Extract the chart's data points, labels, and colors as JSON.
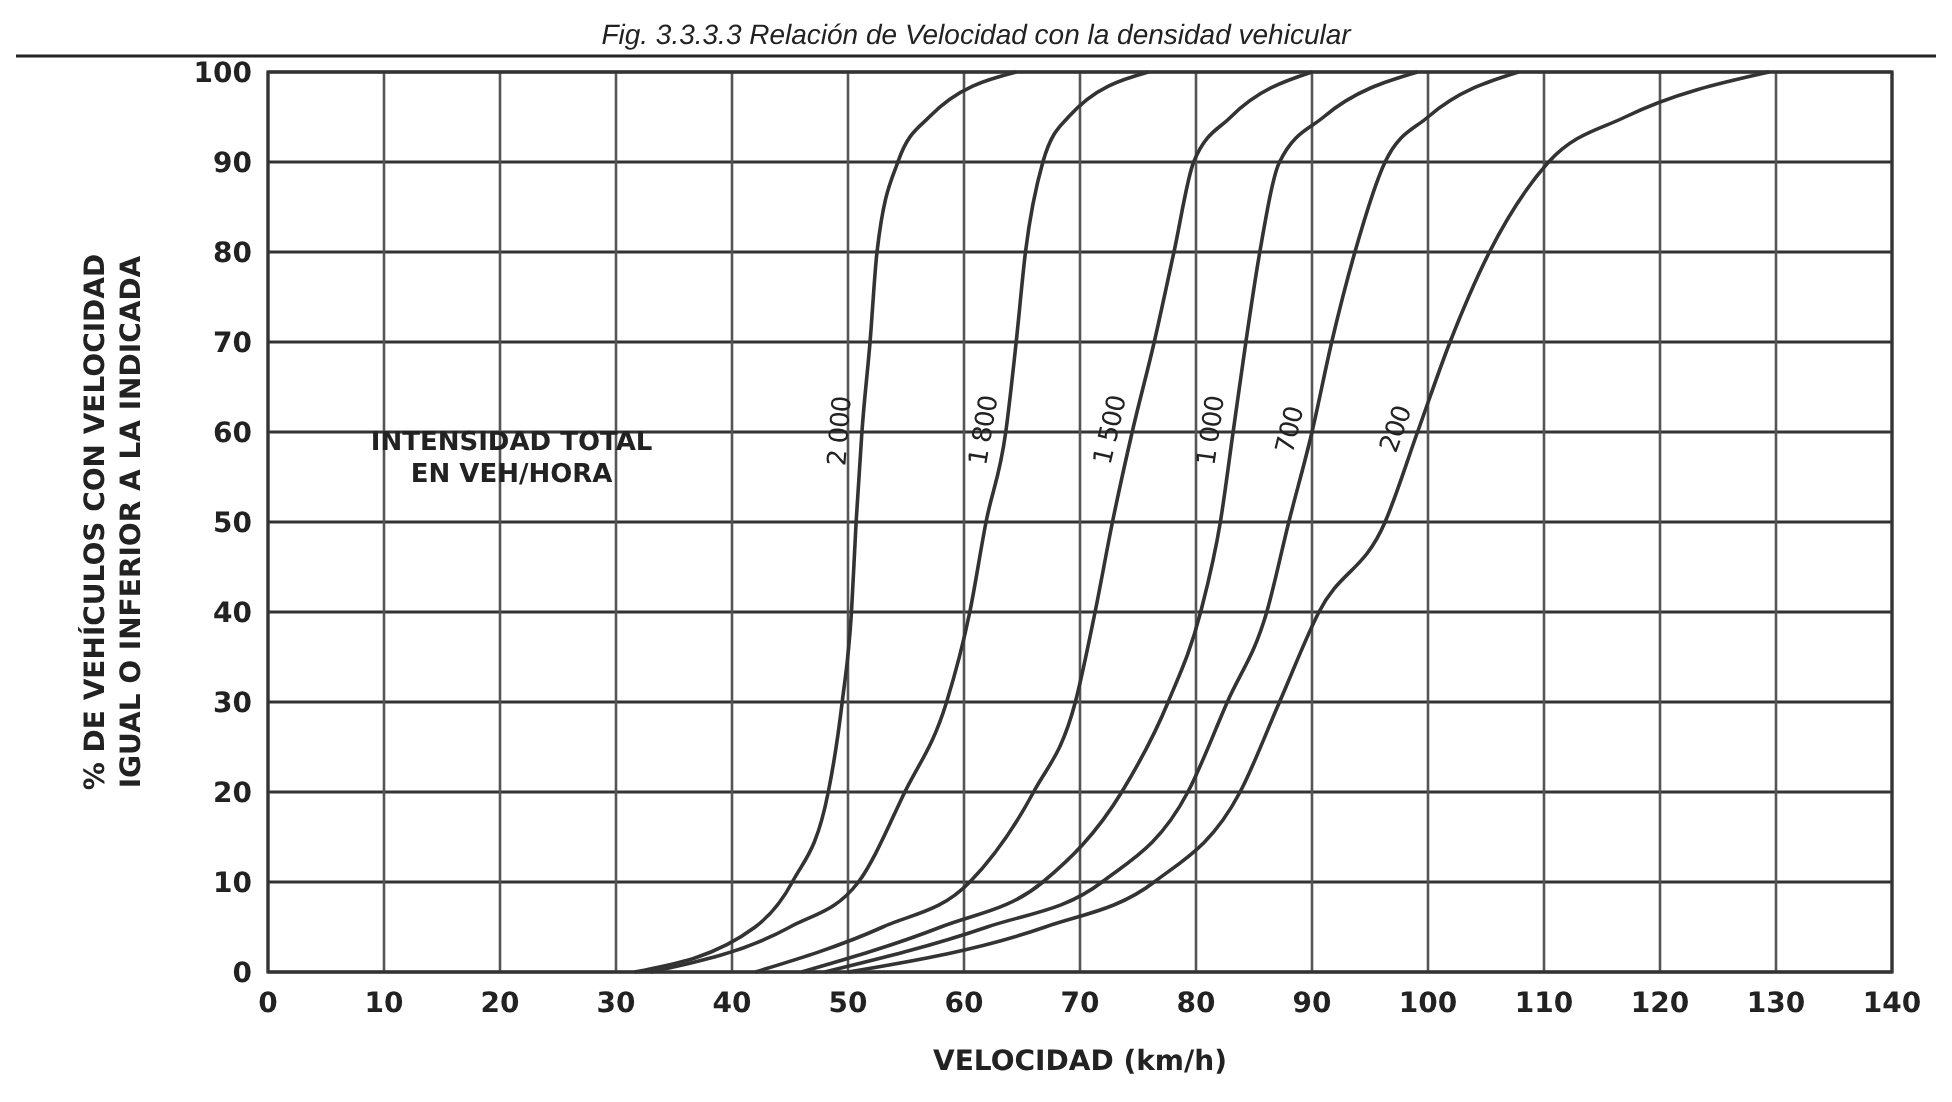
{
  "chart_data": {
    "type": "line",
    "title": "Fig. 3.3.3.3 Relación de Velocidad con la densidad vehicular",
    "xlabel": "VELOCIDAD (km/h)",
    "ylabel": "% DE VEHÍCULOS CON VELOCIDAD IGUAL O INFERIOR A LA INDICADA",
    "legend_title": "INTENSIDAD TOTAL EN VEH/HORA",
    "xlim": [
      0,
      140
    ],
    "ylim": [
      0,
      100
    ],
    "xticks": [
      0,
      10,
      20,
      30,
      40,
      50,
      60,
      70,
      80,
      90,
      100,
      110,
      120,
      130,
      140
    ],
    "yticks": [
      0,
      10,
      20,
      30,
      40,
      50,
      60,
      70,
      80,
      90,
      100
    ],
    "grid": true,
    "marker": "none",
    "line_style": "solid",
    "series": [
      {
        "name": "2 000",
        "color": "#333333",
        "x": [
          31.6,
          42,
          45.2,
          48.3,
          49.5,
          50.3,
          50.7,
          51.2,
          51.9,
          52.5,
          54.3,
          57,
          64.5
        ],
        "values": [
          0,
          5,
          10,
          20,
          30,
          40,
          50,
          60,
          70,
          80,
          90,
          95,
          100
        ]
      },
      {
        "name": "1 800",
        "color": "#333333",
        "x": [
          33,
          45,
          50.9,
          54.9,
          58.5,
          60.5,
          61.9,
          63.6,
          64.5,
          65.3,
          66.8,
          69,
          75.9
        ],
        "values": [
          0,
          5,
          10,
          20,
          30,
          40,
          50,
          60,
          70,
          80,
          90,
          95,
          100
        ]
      },
      {
        "name": "1 500",
        "color": "#333333",
        "x": [
          42,
          53,
          60.5,
          66,
          69.6,
          71.3,
          72.8,
          74.5,
          76.4,
          78.1,
          79.8,
          83,
          90
        ],
        "values": [
          0,
          5,
          10,
          20,
          30,
          40,
          50,
          60,
          70,
          80,
          90,
          95,
          100
        ]
      },
      {
        "name": "1 000",
        "color": "#333333",
        "x": [
          46,
          58,
          66.8,
          73.6,
          77.6,
          80.4,
          82.1,
          83.2,
          84.3,
          85.5,
          87.2,
          91,
          99.1
        ],
        "values": [
          0,
          5,
          10,
          20,
          30,
          40,
          50,
          60,
          70,
          80,
          90,
          95,
          100
        ]
      },
      {
        "name": "700",
        "color": "#333333",
        "x": [
          48,
          62,
          71.9,
          79.3,
          82.7,
          86.1,
          88,
          90,
          91.7,
          93.7,
          96.3,
          100,
          107.8
        ],
        "values": [
          0,
          5,
          10,
          20,
          30,
          40,
          50,
          60,
          70,
          80,
          90,
          95,
          100
        ]
      },
      {
        "name": "200",
        "color": "#333333",
        "x": [
          50,
          67,
          76.4,
          83.8,
          87.2,
          90.6,
          96.3,
          99.1,
          101.9,
          105.3,
          110.4,
          117,
          129.4
        ],
        "values": [
          0,
          5,
          10,
          20,
          30,
          40,
          50,
          60,
          70,
          80,
          90,
          95,
          100
        ]
      }
    ]
  }
}
